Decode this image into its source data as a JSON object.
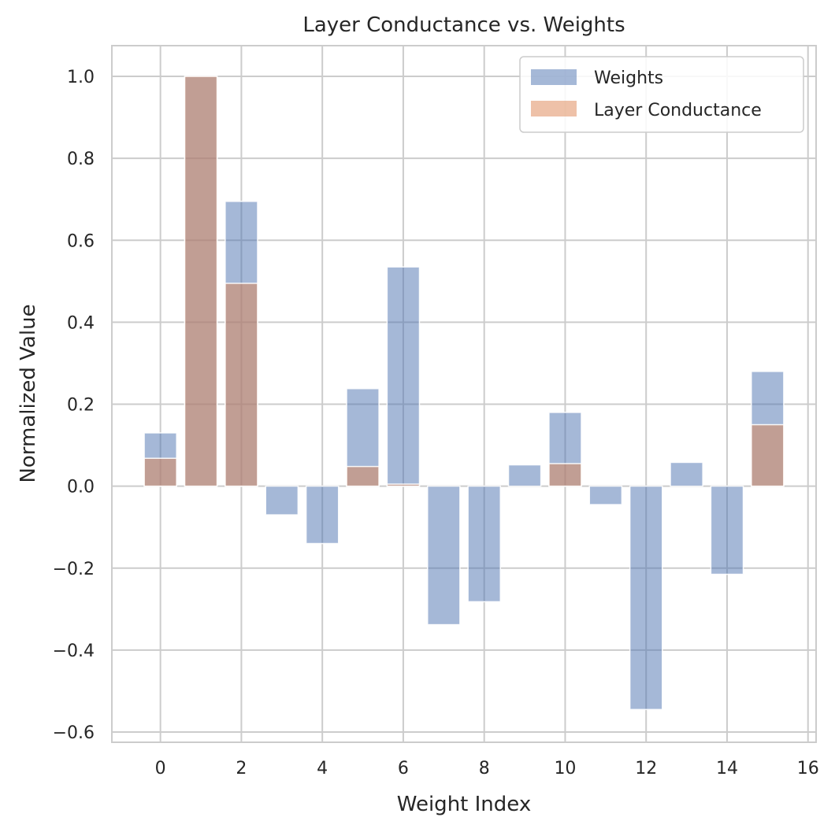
{
  "chart_data": {
    "type": "bar",
    "title": "Layer Conductance vs. Weights",
    "xlabel": "Weight Index",
    "ylabel": "Normalized Value",
    "x": [
      0,
      1,
      2,
      3,
      4,
      5,
      6,
      7,
      8,
      9,
      10,
      11,
      12,
      13,
      14,
      15
    ],
    "xlim": [
      -1.2,
      16.2
    ],
    "ylim": [
      -0.625,
      1.075
    ],
    "xticks": [
      0,
      2,
      4,
      6,
      8,
      10,
      12,
      14,
      16
    ],
    "yticks": [
      -0.6,
      -0.4,
      -0.2,
      0.0,
      0.2,
      0.4,
      0.6,
      0.8,
      1.0
    ],
    "xtick_labels": [
      "0",
      "2",
      "4",
      "6",
      "8",
      "10",
      "12",
      "14",
      "16"
    ],
    "ytick_labels": [
      "−0.6",
      "−0.4",
      "−0.2",
      "0.0",
      "0.2",
      "0.4",
      "0.6",
      "0.8",
      "1.0"
    ],
    "grid": true,
    "legend_position": "top-right",
    "series": [
      {
        "name": "Weights",
        "color": "#4c72b0",
        "alpha": 0.5,
        "values": [
          0.13,
          1.0,
          0.695,
          -0.07,
          -0.14,
          0.238,
          0.535,
          -0.338,
          -0.282,
          0.052,
          0.18,
          -0.045,
          -0.545,
          0.058,
          -0.215,
          0.28
        ]
      },
      {
        "name": "Layer Conductance",
        "color": "#dd8452",
        "alpha": 0.5,
        "values": [
          0.068,
          1.0,
          0.495,
          0.0,
          0.0,
          0.048,
          0.005,
          0.0,
          0.0,
          0.0,
          0.055,
          0.0,
          0.0,
          0.0,
          0.0,
          0.15
        ]
      }
    ]
  }
}
